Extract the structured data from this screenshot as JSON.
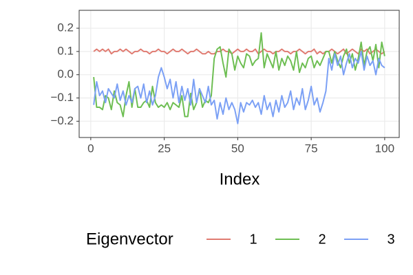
{
  "chart_data": {
    "type": "line",
    "x_label": "Index",
    "legend_title": "Eigenvector",
    "legend_position": "bottom",
    "grid": true,
    "x": [
      1,
      2,
      3,
      4,
      5,
      6,
      7,
      8,
      9,
      10,
      11,
      12,
      13,
      14,
      15,
      16,
      17,
      18,
      19,
      20,
      21,
      22,
      23,
      24,
      25,
      26,
      27,
      28,
      29,
      30,
      31,
      32,
      33,
      34,
      35,
      36,
      37,
      38,
      39,
      40,
      41,
      42,
      43,
      44,
      45,
      46,
      47,
      48,
      49,
      50,
      51,
      52,
      53,
      54,
      55,
      56,
      57,
      58,
      59,
      60,
      61,
      62,
      63,
      64,
      65,
      66,
      67,
      68,
      69,
      70,
      71,
      72,
      73,
      74,
      75,
      76,
      77,
      78,
      79,
      80,
      81,
      82,
      83,
      84,
      85,
      86,
      87,
      88,
      89,
      90,
      91,
      92,
      93,
      94,
      95,
      96,
      97,
      98,
      99,
      100
    ],
    "xlim": [
      -3.95,
      104.95
    ],
    "xticks": [
      0,
      25,
      50,
      75,
      100
    ],
    "ylim": [
      -0.27,
      0.277
    ],
    "yticks": [
      {
        "value": -0.2,
        "label": "−0.2"
      },
      {
        "value": -0.1,
        "label": "−0.1"
      },
      {
        "value": 0,
        "label": "0.0"
      },
      0.1,
      0.2
    ],
    "series": [
      {
        "name": "1",
        "color": "#E07A70",
        "values": [
          0.1,
          0.11,
          0.1,
          0.11,
          0.1,
          0.11,
          0.09,
          0.1,
          0.1,
          0.11,
          0.1,
          0.11,
          0.1,
          0.09,
          0.1,
          0.1,
          0.11,
          0.1,
          0.1,
          0.09,
          0.1,
          0.1,
          0.11,
          0.1,
          0.1,
          0.09,
          0.1,
          0.11,
          0.1,
          0.1,
          0.11,
          0.1,
          0.09,
          0.1,
          0.1,
          0.11,
          0.1,
          0.09,
          0.09,
          0.1,
          0.09,
          0.09,
          0.1,
          0.1,
          0.11,
          0.1,
          0.1,
          0.09,
          0.1,
          0.11,
          0.1,
          0.1,
          0.11,
          0.1,
          0.1,
          0.11,
          0.09,
          0.1,
          0.11,
          0.1,
          0.1,
          0.09,
          0.1,
          0.1,
          0.11,
          0.1,
          0.1,
          0.09,
          0.1,
          0.1,
          0.11,
          0.1,
          0.09,
          0.1,
          0.1,
          0.11,
          0.09,
          0.1,
          0.09,
          0.1,
          0.1,
          0.11,
          0.1,
          0.09,
          0.1,
          0.11,
          0.09,
          0.1,
          0.11,
          0.1,
          0.09,
          0.11,
          0.1,
          0.11,
          0.09,
          0.1,
          0.11,
          0.1,
          0.09,
          0.1
        ]
      },
      {
        "name": "2",
        "color": "#6DBE52",
        "values": [
          -0.01,
          -0.14,
          -0.14,
          -0.15,
          -0.09,
          -0.1,
          -0.15,
          -0.07,
          -0.12,
          -0.13,
          -0.18,
          -0.09,
          -0.03,
          -0.14,
          -0.06,
          -0.14,
          -0.14,
          -0.12,
          -0.11,
          -0.14,
          -0.05,
          -0.12,
          -0.14,
          -0.13,
          -0.14,
          -0.12,
          -0.15,
          -0.12,
          -0.13,
          -0.14,
          -0.09,
          -0.18,
          -0.18,
          -0.08,
          -0.15,
          -0.12,
          -0.06,
          -0.14,
          -0.11,
          -0.12,
          -0.09,
          0.07,
          0.11,
          0.12,
          0.05,
          -0.01,
          0.11,
          0.09,
          0.02,
          0.08,
          0.05,
          0.03,
          0.09,
          0.08,
          0.04,
          0.06,
          0.07,
          0.18,
          0.03,
          0.09,
          0.06,
          0.03,
          0.1,
          0.02,
          0.07,
          0.04,
          0.08,
          0.06,
          0.02,
          0.1,
          0.01,
          0.05,
          0.03,
          0.07,
          0.08,
          0.03,
          0.06,
          0.04,
          0.07,
          0.1,
          0.1,
          0.05,
          0.1,
          0.06,
          0.03,
          0.08,
          0.11,
          0.05,
          0.09,
          0.02,
          0.07,
          0.14,
          0.04,
          0.1,
          0.12,
          0.06,
          0.13,
          0.03,
          0.14,
          0.08
        ]
      },
      {
        "name": "3",
        "color": "#7BA0F5",
        "values": [
          -0.13,
          -0.03,
          -0.09,
          -0.07,
          -0.12,
          -0.06,
          -0.08,
          -0.1,
          -0.04,
          -0.11,
          -0.07,
          -0.13,
          -0.09,
          -0.12,
          -0.06,
          -0.05,
          -0.1,
          -0.04,
          -0.12,
          -0.07,
          -0.13,
          -0.09,
          -0.01,
          0.03,
          -0.01,
          -0.06,
          -0.02,
          -0.1,
          -0.03,
          -0.12,
          -0.05,
          -0.11,
          -0.06,
          -0.13,
          -0.02,
          -0.12,
          -0.06,
          -0.09,
          -0.12,
          -0.05,
          -0.13,
          -0.11,
          -0.19,
          -0.12,
          -0.17,
          -0.1,
          -0.15,
          -0.12,
          -0.15,
          -0.21,
          -0.12,
          -0.16,
          -0.12,
          -0.13,
          -0.11,
          -0.14,
          -0.12,
          -0.17,
          -0.09,
          -0.15,
          -0.12,
          -0.18,
          -0.11,
          -0.16,
          -0.09,
          -0.14,
          -0.12,
          -0.07,
          -0.15,
          -0.1,
          -0.13,
          -0.06,
          -0.15,
          -0.11,
          -0.05,
          -0.13,
          -0.1,
          -0.16,
          -0.12,
          -0.07,
          0.07,
          0.02,
          0.09,
          0.04,
          0.08,
          0.0,
          0.05,
          0.09,
          0.03,
          0.07,
          0.05,
          0.1,
          0.02,
          0.08,
          0.04,
          0.06,
          0.0,
          0.07,
          0.04,
          0.03
        ]
      }
    ]
  }
}
